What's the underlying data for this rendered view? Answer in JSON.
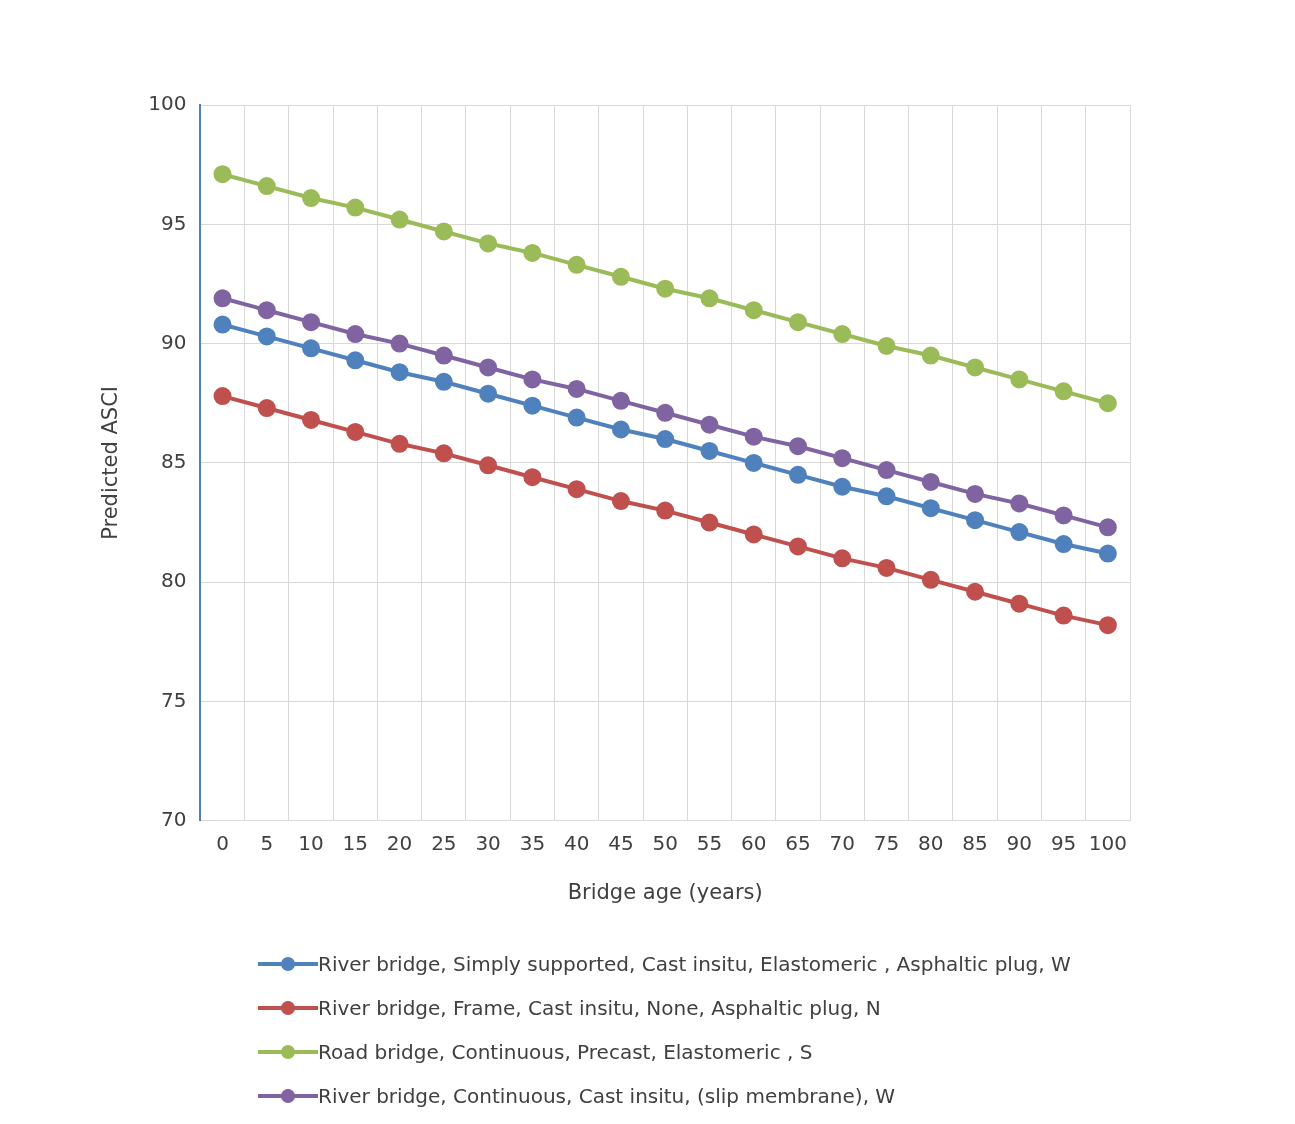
{
  "chart_data": {
    "type": "line",
    "xlabel": "Bridge age (years)",
    "ylabel": "Predicted ASCI",
    "categories": [
      "0",
      "5",
      "10",
      "15",
      "20",
      "25",
      "30",
      "35",
      "40",
      "45",
      "50",
      "55",
      "60",
      "65",
      "70",
      "75",
      "80",
      "85",
      "90",
      "95",
      "100"
    ],
    "series": [
      {
        "name": "River bridge, Simply supported, Cast insitu, Elastomeric , Asphaltic plug, W",
        "color": "#4f81bd",
        "values": [
          90.8,
          90.3,
          89.8,
          89.3,
          88.8,
          88.4,
          87.9,
          87.4,
          86.9,
          86.4,
          86.0,
          85.5,
          85.0,
          84.5,
          84.0,
          83.6,
          83.1,
          82.6,
          82.1,
          81.6,
          81.2
        ]
      },
      {
        "name": "River bridge, Frame, Cast insitu, None, Asphaltic plug, N",
        "color": "#c0504d",
        "values": [
          87.8,
          87.3,
          86.8,
          86.3,
          85.8,
          85.4,
          84.9,
          84.4,
          83.9,
          83.4,
          83.0,
          82.5,
          82.0,
          81.5,
          81.0,
          80.6,
          80.1,
          79.6,
          79.1,
          78.6,
          78.2
        ]
      },
      {
        "name": "Road bridge, Continuous, Precast, Elastomeric , S",
        "color": "#9bbb59",
        "values": [
          97.1,
          96.6,
          96.1,
          95.7,
          95.2,
          94.7,
          94.2,
          93.8,
          93.3,
          92.8,
          92.3,
          91.9,
          91.4,
          90.9,
          90.4,
          89.9,
          89.5,
          89.0,
          88.5,
          88.0,
          87.5
        ]
      },
      {
        "name": "River bridge, Continuous, Cast insitu, (slip membrane), W",
        "color": "#8064a2",
        "values": [
          91.9,
          91.4,
          90.9,
          90.4,
          90.0,
          89.5,
          89.0,
          88.5,
          88.1,
          87.6,
          87.1,
          86.6,
          86.1,
          85.7,
          85.2,
          84.7,
          84.2,
          83.7,
          83.3,
          82.8,
          82.3
        ]
      }
    ],
    "ylim": [
      70,
      100
    ],
    "yticks": [
      70,
      75,
      80,
      85,
      90,
      95,
      100
    ],
    "grid": true,
    "legend": "bottom",
    "marker": "circle",
    "line_style": "solid"
  }
}
